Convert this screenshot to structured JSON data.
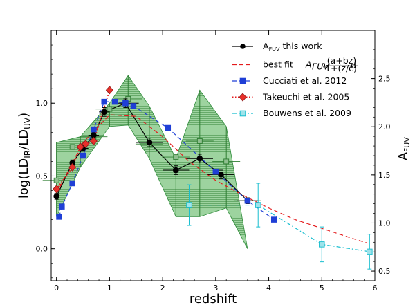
{
  "chart_data": {
    "type": "scatter",
    "title": "",
    "xlabel": "redshift",
    "ylabel": "log(LD_IR/LD_UV)",
    "ylabel_right": "A_FUV",
    "xlim": [
      -0.1,
      6.0
    ],
    "ylim": [
      -0.22,
      1.5
    ],
    "ylim_right": [
      0.4,
      3.0
    ],
    "xticks": [
      0,
      1,
      2,
      3,
      4,
      5,
      6
    ],
    "yticks": [
      0.0,
      0.5,
      1.0
    ],
    "yticks_right": [
      0.5,
      1.0,
      1.5,
      2.0,
      2.5
    ],
    "legend_position": "top-right",
    "band": {
      "name": "shaded uncertainty region",
      "color": "#3cb043",
      "upper": [
        [
          0.0,
          0.73
        ],
        [
          0.45,
          0.77
        ],
        [
          1.0,
          1.0
        ],
        [
          1.35,
          1.19
        ],
        [
          1.75,
          0.98
        ],
        [
          2.25,
          0.62
        ],
        [
          2.7,
          1.09
        ],
        [
          3.2,
          0.84
        ],
        [
          3.6,
          0.0
        ]
      ],
      "lower": [
        [
          0.0,
          0.22
        ],
        [
          0.45,
          0.56
        ],
        [
          1.0,
          0.84
        ],
        [
          1.35,
          0.85
        ],
        [
          1.75,
          0.62
        ],
        [
          2.25,
          0.22
        ],
        [
          2.7,
          0.22
        ],
        [
          3.2,
          0.28
        ],
        [
          3.6,
          0.0
        ]
      ],
      "grey_points": [
        [
          0.0,
          0.47
        ],
        [
          0.3,
          0.7
        ],
        [
          0.7,
          0.77
        ],
        [
          1.0,
          0.96
        ],
        [
          1.35,
          1.03
        ],
        [
          1.75,
          0.72
        ],
        [
          2.25,
          0.63
        ],
        [
          2.7,
          0.74
        ],
        [
          3.2,
          0.6
        ],
        [
          3.6,
          0.33
        ]
      ]
    },
    "series": [
      {
        "name": "A_FUV this work",
        "legend_main": "A",
        "legend_sub": "FUV",
        "legend_rest": " this work",
        "color": "#000000",
        "marker": "circle",
        "line": "solid",
        "x": [
          0.0,
          0.3,
          0.5,
          0.7,
          0.9,
          1.3,
          1.75,
          2.25,
          2.7,
          3.1,
          3.6
        ],
        "y": [
          0.36,
          0.59,
          0.69,
          0.78,
          0.94,
          1.0,
          0.73,
          0.54,
          0.62,
          0.51,
          0.33
        ],
        "xerr": [
          0.0,
          0.1,
          0.1,
          0.1,
          0.1,
          0.25,
          0.25,
          0.25,
          0.25,
          0.25,
          0.2
        ],
        "yerr": [
          0.02,
          0.02,
          0.02,
          0.02,
          0.03,
          0.03,
          0.03,
          0.03,
          0.03,
          0.03,
          0.02
        ]
      },
      {
        "name": "best fit",
        "legend_text": "best fit ",
        "legend_formula": "A_FUV: (a+bz)/(1+(z/c)^d)",
        "color": "#e41a1c",
        "marker": "none",
        "line": "dashed",
        "x": [
          0.0,
          0.5,
          1.0,
          1.5,
          2.0,
          2.5,
          3.0,
          3.5,
          4.0,
          4.5,
          5.0,
          5.5,
          5.85
        ],
        "y": [
          0.38,
          0.73,
          0.92,
          0.91,
          0.77,
          0.6,
          0.47,
          0.37,
          0.28,
          0.2,
          0.14,
          0.08,
          0.04
        ]
      },
      {
        "name": "Cucciati et al. 2012",
        "color": "#1f3fd6",
        "marker": "square",
        "line": "dashed",
        "x": [
          0.05,
          0.1,
          0.3,
          0.5,
          0.7,
          0.9,
          1.1,
          1.3,
          1.45,
          2.1,
          3.0,
          3.6,
          4.1
        ],
        "y": [
          0.22,
          0.29,
          0.45,
          0.64,
          0.82,
          1.01,
          1.01,
          1.0,
          0.98,
          0.83,
          0.53,
          0.33,
          0.2
        ]
      },
      {
        "name": "Takeuchi et al. 2005",
        "color": "#e41a1c",
        "marker_color": "#e8302a",
        "marker": "diamond",
        "line": "dotted",
        "x": [
          0.0,
          0.3,
          0.45,
          0.55,
          0.7,
          1.0
        ],
        "y": [
          0.41,
          0.56,
          0.7,
          0.72,
          0.74,
          1.09
        ]
      },
      {
        "name": "Bouwens et al. 2009",
        "color": "#17becf",
        "marker": "square",
        "line": "dashdot",
        "x": [
          2.5,
          3.8,
          5.0,
          5.9
        ],
        "y": [
          0.3,
          0.3,
          0.03,
          -0.02
        ],
        "xerr": [
          0.3,
          0.5,
          0.0,
          0.0
        ],
        "yerr": [
          0.14,
          0.15,
          0.12,
          0.12
        ]
      }
    ]
  }
}
